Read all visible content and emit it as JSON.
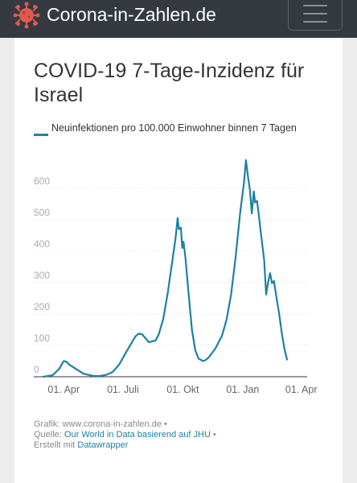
{
  "navbar": {
    "brand_text": "Corona-in-Zahlen.de",
    "brand_icon": "virus-icon",
    "menu_icon": "hamburger-menu-icon"
  },
  "colors": {
    "navbar_bg": "#343a40",
    "brand_icon": "#e05a4f",
    "line": "#1d81a2",
    "link": "#1d81a2"
  },
  "chart": {
    "title": "COVID-19 7-Tage-Inzidenz für Israel",
    "legend_label": "Neuinfektionen pro 100.000 Einwohner binnen 7 Tagen"
  },
  "footer": {
    "line1": "Grafik: www.corona-in-zahlen.de •",
    "source_prefix": "Quelle: ",
    "source_link": "Our World in Data basierend auf JHU",
    "source_suffix": " •",
    "created_prefix": "Erstellt mit ",
    "created_link": "Datawrapper"
  },
  "chart_data": {
    "type": "line",
    "title": "COVID-19 7-Tage-Inzidenz für Israel",
    "xlabel": "",
    "ylabel": "",
    "ylim": [
      0,
      700
    ],
    "yticks": [
      0,
      100,
      200,
      300,
      400,
      500,
      600
    ],
    "xlim": [
      "2020-02-15",
      "2021-04-10"
    ],
    "xticks": [
      {
        "date": "2020-04-01",
        "label": "01. Apr"
      },
      {
        "date": "2020-07-01",
        "label": "01. Juli"
      },
      {
        "date": "2020-10-01",
        "label": "01. Okt"
      },
      {
        "date": "2021-01-01",
        "label": "01. Jan"
      },
      {
        "date": "2021-04-01",
        "label": "01. Apr"
      }
    ],
    "grid": true,
    "legend_position": "top-left",
    "series": [
      {
        "name": "Neuinfektionen pro 100.000 Einwohner binnen 7 Tagen",
        "points": [
          [
            "2020-03-01",
            0
          ],
          [
            "2020-03-15",
            5
          ],
          [
            "2020-03-25",
            25
          ],
          [
            "2020-04-01",
            50
          ],
          [
            "2020-04-05",
            48
          ],
          [
            "2020-04-10",
            38
          ],
          [
            "2020-04-20",
            25
          ],
          [
            "2020-05-01",
            10
          ],
          [
            "2020-05-15",
            3
          ],
          [
            "2020-05-25",
            2
          ],
          [
            "2020-06-05",
            6
          ],
          [
            "2020-06-15",
            15
          ],
          [
            "2020-06-25",
            38
          ],
          [
            "2020-07-05",
            75
          ],
          [
            "2020-07-15",
            110
          ],
          [
            "2020-07-20",
            128
          ],
          [
            "2020-07-25",
            137
          ],
          [
            "2020-07-30",
            136
          ],
          [
            "2020-08-05",
            122
          ],
          [
            "2020-08-10",
            110
          ],
          [
            "2020-08-20",
            115
          ],
          [
            "2020-08-25",
            135
          ],
          [
            "2020-09-01",
            185
          ],
          [
            "2020-09-08",
            270
          ],
          [
            "2020-09-15",
            370
          ],
          [
            "2020-09-20",
            445
          ],
          [
            "2020-09-23",
            505
          ],
          [
            "2020-09-25",
            470
          ],
          [
            "2020-09-28",
            475
          ],
          [
            "2020-09-30",
            410
          ],
          [
            "2020-10-02",
            430
          ],
          [
            "2020-10-05",
            380
          ],
          [
            "2020-10-10",
            260
          ],
          [
            "2020-10-15",
            150
          ],
          [
            "2020-10-20",
            85
          ],
          [
            "2020-10-25",
            58
          ],
          [
            "2020-11-01",
            50
          ],
          [
            "2020-11-05",
            53
          ],
          [
            "2020-11-10",
            62
          ],
          [
            "2020-11-20",
            90
          ],
          [
            "2020-11-30",
            130
          ],
          [
            "2020-12-07",
            180
          ],
          [
            "2020-12-14",
            260
          ],
          [
            "2020-12-21",
            380
          ],
          [
            "2020-12-28",
            520
          ],
          [
            "2021-01-03",
            620
          ],
          [
            "2021-01-06",
            690
          ],
          [
            "2021-01-09",
            640
          ],
          [
            "2021-01-12",
            595
          ],
          [
            "2021-01-15",
            520
          ],
          [
            "2021-01-18",
            590
          ],
          [
            "2021-01-20",
            555
          ],
          [
            "2021-01-23",
            560
          ],
          [
            "2021-01-26",
            510
          ],
          [
            "2021-01-30",
            440
          ],
          [
            "2021-02-03",
            370
          ],
          [
            "2021-02-06",
            262
          ],
          [
            "2021-02-09",
            300
          ],
          [
            "2021-02-12",
            330
          ],
          [
            "2021-02-15",
            298
          ],
          [
            "2021-02-18",
            305
          ],
          [
            "2021-02-22",
            250
          ],
          [
            "2021-02-26",
            200
          ],
          [
            "2021-03-02",
            140
          ],
          [
            "2021-03-06",
            90
          ],
          [
            "2021-03-10",
            55
          ]
        ]
      }
    ]
  }
}
